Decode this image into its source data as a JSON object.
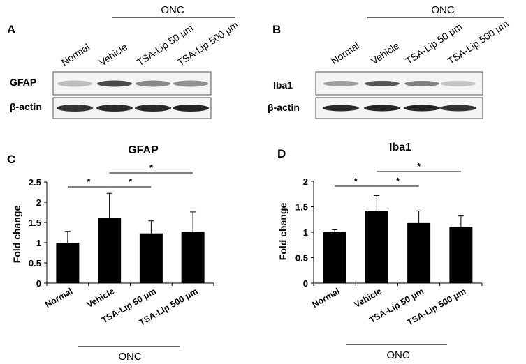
{
  "panels": {
    "A": "A",
    "B": "B",
    "C": "C",
    "D": "D"
  },
  "onc_label": "ONC",
  "blots": [
    {
      "id": "A",
      "lanes": [
        "Normal",
        "Vehicle",
        "TSA-Lip 50 μm",
        "TSA-Lip 500 μm"
      ],
      "rows": [
        {
          "label": "GFAP",
          "intensities": [
            0.22,
            0.75,
            0.45,
            0.42
          ]
        },
        {
          "label": "β-actin",
          "intensities": [
            0.85,
            0.9,
            0.9,
            0.92
          ]
        }
      ]
    },
    {
      "id": "B",
      "lanes": [
        "Normal",
        "Vehicle",
        "TSA-Lip 50 μm",
        "TSA-Lip 500 μm"
      ],
      "rows": [
        {
          "label": "Iba1",
          "intensities": [
            0.35,
            0.7,
            0.5,
            0.18
          ]
        },
        {
          "label": "β-actin",
          "intensities": [
            0.9,
            0.92,
            0.92,
            0.85
          ]
        }
      ]
    }
  ],
  "chart_data": [
    {
      "type": "bar",
      "title": "GFAP",
      "ylabel": "Fold change",
      "xlabel": "",
      "categories": [
        "Normal",
        "Vehicle",
        "TSA-Lip 50 μm",
        "TSA-Lip 500 μm"
      ],
      "values": [
        1.0,
        1.62,
        1.23,
        1.26
      ],
      "errors": [
        0.28,
        0.6,
        0.31,
        0.5
      ],
      "ylim": [
        0,
        2.5
      ],
      "yticks": [
        "0",
        "0.5",
        "1",
        "1.5",
        "2",
        "2.5"
      ],
      "ytick_values": [
        0,
        0.5,
        1,
        1.5,
        2,
        2.5
      ],
      "significance": [
        {
          "from": 0,
          "to": 1,
          "label": "*",
          "level": 0
        },
        {
          "from": 1,
          "to": 2,
          "label": "*",
          "level": 0
        },
        {
          "from": 1,
          "to": 3,
          "label": "*",
          "level": 1
        }
      ]
    },
    {
      "type": "bar",
      "title": "Iba1",
      "ylabel": "Fold change",
      "xlabel": "",
      "categories": [
        "Normal",
        "Vehicle",
        "TSA-Lip 50 μm",
        "TSA-Lip 500 μm"
      ],
      "values": [
        1.0,
        1.42,
        1.18,
        1.1
      ],
      "errors": [
        0.05,
        0.3,
        0.24,
        0.22
      ],
      "ylim": [
        0,
        2
      ],
      "yticks": [
        "0",
        "0.5",
        "1",
        "1.5",
        "2"
      ],
      "ytick_values": [
        0,
        0.5,
        1,
        1.5,
        2
      ],
      "significance": [
        {
          "from": 0,
          "to": 1,
          "label": "*",
          "level": 0
        },
        {
          "from": 1,
          "to": 2,
          "label": "*",
          "level": 0
        },
        {
          "from": 1,
          "to": 3,
          "label": "*",
          "level": 1
        }
      ]
    }
  ]
}
